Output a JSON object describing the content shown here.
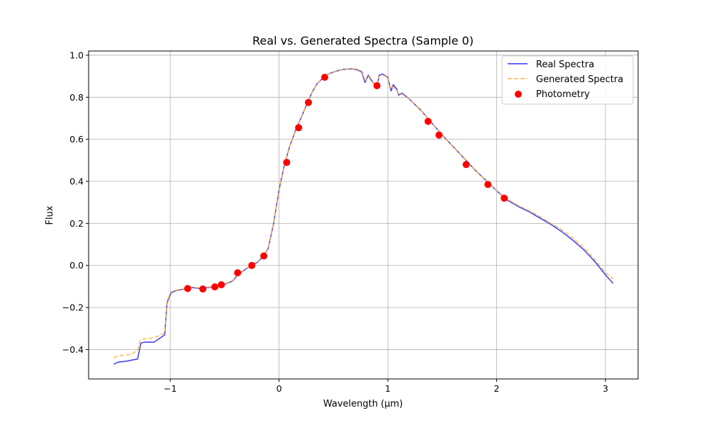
{
  "chart_data": {
    "type": "line",
    "title": "Real vs. Generated Spectra (Sample 0)",
    "xlabel": "Wavelength (µm)",
    "ylabel": "Flux",
    "xlim": [
      -1.75,
      3.3
    ],
    "ylim": [
      -0.54,
      1.02
    ],
    "xticks": [
      -1,
      0,
      1,
      2,
      3
    ],
    "yticks": [
      -0.4,
      -0.2,
      0.0,
      0.2,
      0.4,
      0.6,
      0.8,
      1.0
    ],
    "xtick_labels": [
      "−1",
      "0",
      "1",
      "2",
      "3"
    ],
    "ytick_labels": [
      "−0.4",
      "−0.2",
      "0.0",
      "0.2",
      "0.4",
      "0.6",
      "0.8",
      "1.0"
    ],
    "grid": true,
    "legend_position": "top-right",
    "series": [
      {
        "name": "Real Spectra",
        "style": "solid",
        "color": "#3333ee",
        "x": [
          -1.52,
          -1.48,
          -1.4,
          -1.35,
          -1.3,
          -1.27,
          -1.24,
          -1.15,
          -1.05,
          -1.03,
          -1.01,
          -0.99,
          -0.95,
          -0.9,
          -0.85,
          -0.8,
          -0.72,
          -0.65,
          -0.58,
          -0.5,
          -0.43,
          -0.37,
          -0.3,
          -0.25,
          -0.2,
          -0.15,
          -0.1,
          -0.05,
          0.0,
          0.05,
          0.1,
          0.15,
          0.2,
          0.25,
          0.3,
          0.35,
          0.4,
          0.45,
          0.5,
          0.55,
          0.6,
          0.67,
          0.72,
          0.76,
          0.79,
          0.82,
          0.85,
          0.88,
          0.9,
          0.92,
          0.95,
          1.0,
          1.03,
          1.05,
          1.08,
          1.1,
          1.13,
          1.2,
          1.3,
          1.4,
          1.5,
          1.6,
          1.7,
          1.8,
          1.9,
          2.0,
          2.1,
          2.2,
          2.3,
          2.4,
          2.5,
          2.6,
          2.7,
          2.8,
          2.9,
          3.0,
          3.07
        ],
        "y": [
          -0.47,
          -0.46,
          -0.455,
          -0.45,
          -0.445,
          -0.37,
          -0.365,
          -0.365,
          -0.33,
          -0.18,
          -0.15,
          -0.13,
          -0.12,
          -0.115,
          -0.11,
          -0.105,
          -0.11,
          -0.105,
          -0.1,
          -0.09,
          -0.075,
          -0.04,
          -0.015,
          0.0,
          0.015,
          0.04,
          0.08,
          0.2,
          0.36,
          0.48,
          0.57,
          0.64,
          0.7,
          0.76,
          0.82,
          0.865,
          0.89,
          0.91,
          0.92,
          0.928,
          0.933,
          0.935,
          0.93,
          0.92,
          0.87,
          0.905,
          0.88,
          0.86,
          0.85,
          0.905,
          0.91,
          0.895,
          0.83,
          0.86,
          0.84,
          0.81,
          0.82,
          0.79,
          0.74,
          0.68,
          0.62,
          0.565,
          0.51,
          0.455,
          0.405,
          0.355,
          0.31,
          0.28,
          0.255,
          0.225,
          0.195,
          0.16,
          0.12,
          0.075,
          0.02,
          -0.045,
          -0.085
        ]
      },
      {
        "name": "Generated Spectra",
        "style": "dashed",
        "color": "#ffb340",
        "x": [
          -1.52,
          -1.48,
          -1.4,
          -1.35,
          -1.3,
          -1.28,
          -1.25,
          -1.15,
          -1.05,
          -1.03,
          -1.01,
          -0.99,
          -0.95,
          -0.9,
          -0.85,
          -0.8,
          -0.72,
          -0.65,
          -0.58,
          -0.5,
          -0.43,
          -0.37,
          -0.3,
          -0.25,
          -0.2,
          -0.15,
          -0.1,
          -0.05,
          0.0,
          0.05,
          0.1,
          0.15,
          0.2,
          0.25,
          0.3,
          0.35,
          0.4,
          0.45,
          0.5,
          0.55,
          0.6,
          0.67,
          0.72,
          0.76,
          0.79,
          0.82,
          0.85,
          0.88,
          0.9,
          0.92,
          0.95,
          1.0,
          1.03,
          1.05,
          1.08,
          1.1,
          1.13,
          1.2,
          1.3,
          1.4,
          1.5,
          1.6,
          1.7,
          1.8,
          1.9,
          2.0,
          2.1,
          2.2,
          2.3,
          2.4,
          2.5,
          2.6,
          2.7,
          2.8,
          2.9,
          3.0,
          3.07
        ],
        "y": [
          -0.44,
          -0.43,
          -0.425,
          -0.42,
          -0.405,
          -0.36,
          -0.35,
          -0.345,
          -0.32,
          -0.17,
          -0.145,
          -0.125,
          -0.118,
          -0.113,
          -0.108,
          -0.103,
          -0.108,
          -0.103,
          -0.098,
          -0.088,
          -0.073,
          -0.038,
          -0.013,
          0.002,
          0.017,
          0.042,
          0.082,
          0.2,
          0.36,
          0.48,
          0.57,
          0.64,
          0.7,
          0.76,
          0.82,
          0.865,
          0.89,
          0.91,
          0.92,
          0.928,
          0.933,
          0.936,
          0.932,
          0.925,
          0.88,
          0.9,
          0.875,
          0.865,
          0.86,
          0.9,
          0.905,
          0.895,
          0.84,
          0.85,
          0.835,
          0.815,
          0.815,
          0.79,
          0.74,
          0.68,
          0.62,
          0.565,
          0.51,
          0.455,
          0.405,
          0.355,
          0.315,
          0.285,
          0.26,
          0.232,
          0.2,
          0.17,
          0.13,
          0.085,
          0.03,
          -0.035,
          -0.065
        ]
      }
    ],
    "scatter": {
      "name": "Photometry",
      "color": "#ff0000",
      "x": [
        -0.84,
        -0.7,
        -0.59,
        -0.53,
        -0.38,
        -0.25,
        -0.14,
        0.07,
        0.18,
        0.27,
        0.42,
        0.9,
        1.37,
        1.47,
        1.72,
        1.92,
        2.07
      ],
      "y": [
        -0.11,
        -0.112,
        -0.102,
        -0.092,
        -0.035,
        0.0,
        0.045,
        0.49,
        0.655,
        0.775,
        0.895,
        0.855,
        0.685,
        0.62,
        0.48,
        0.385,
        0.32
      ]
    }
  }
}
